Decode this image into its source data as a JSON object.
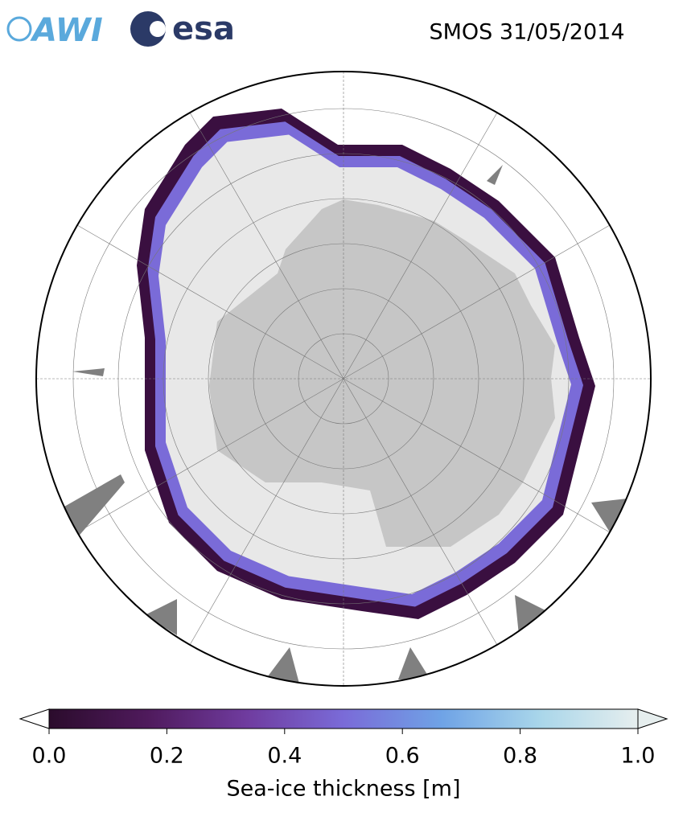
{
  "header": {
    "logos": [
      "AWI",
      "esa"
    ],
    "title": "SMOS 31/05/2014"
  },
  "colorbar": {
    "label": "Sea-ice thickness [m]",
    "lim": [
      0,
      1
    ],
    "ticks": [
      {
        "value": 0,
        "label": "0.0"
      },
      0.2,
      0.4,
      0.6,
      0.8,
      {
        "value": 1,
        "label": "1.0"
      }
    ],
    "colors": [
      "#2b0c2c",
      "#4f1a5c",
      "#6f3b9e",
      "#7a6bd8",
      "#6fa3e6",
      "#a9d6ea",
      "#e6eeee"
    ]
  }
}
